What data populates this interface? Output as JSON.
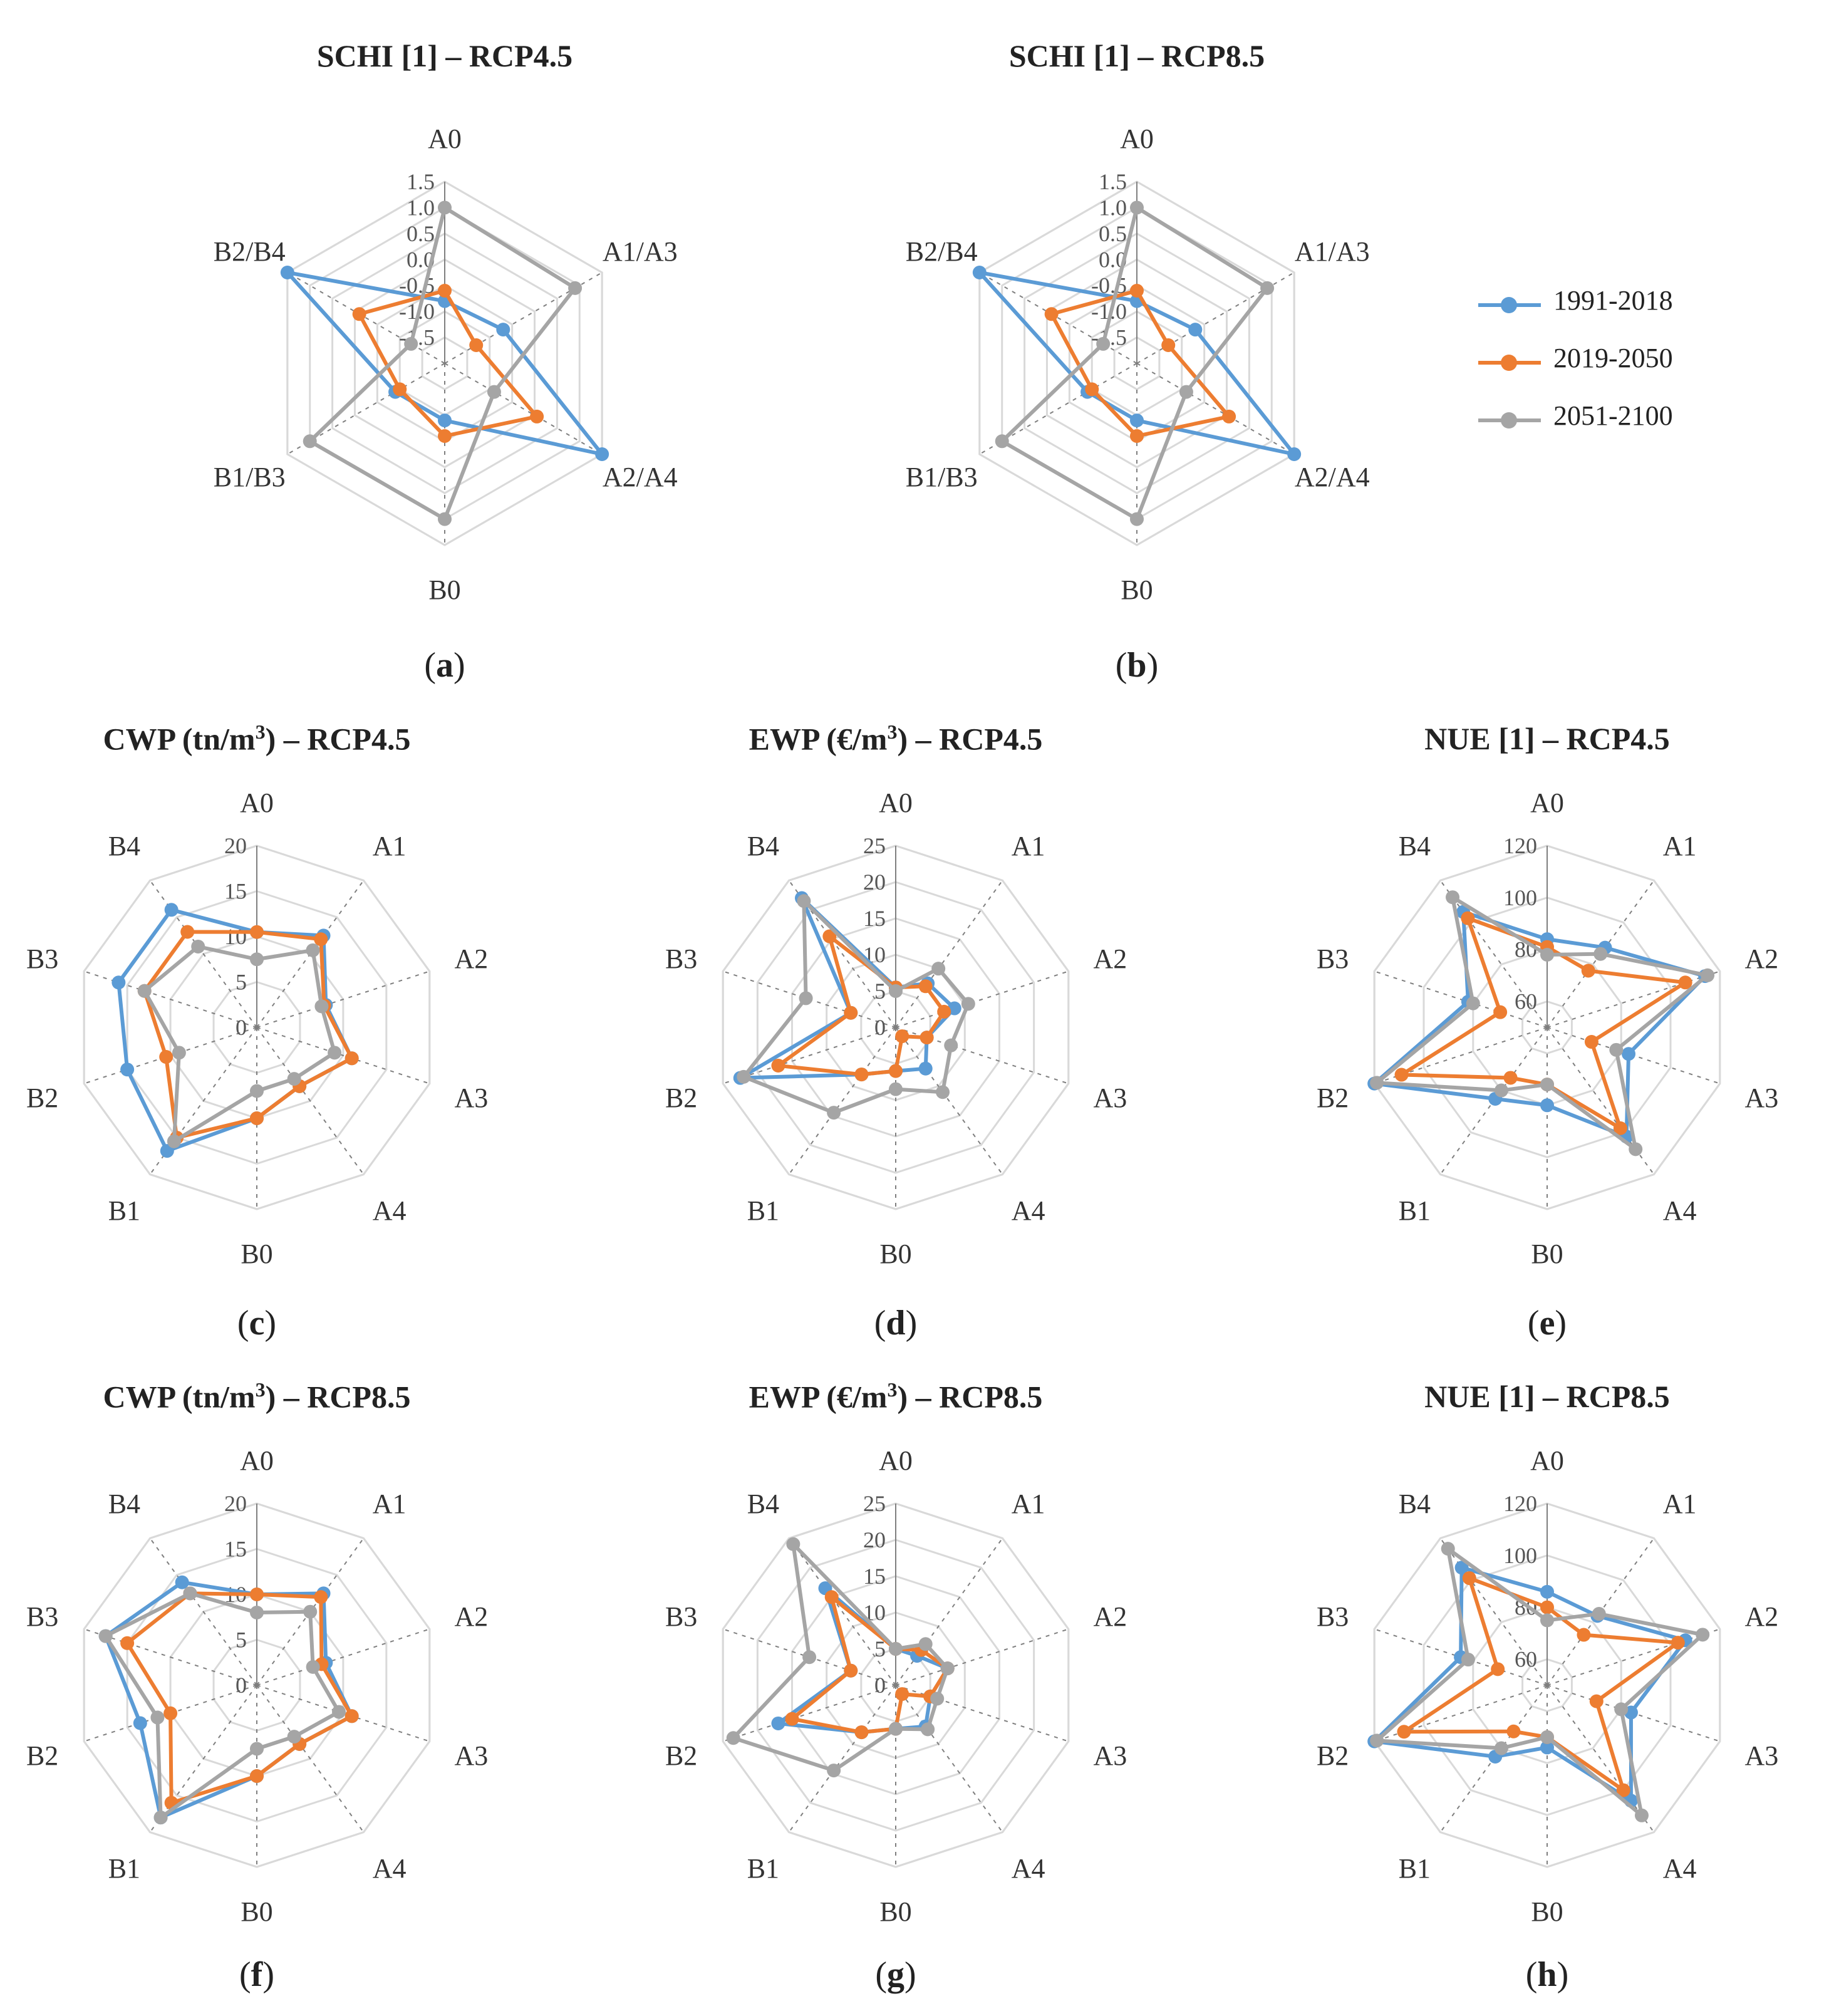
{
  "colors": {
    "s1991": "#5b9bd5",
    "s2019": "#ed7d31",
    "s2051": "#a5a5a5",
    "grid": "#d9d9d9",
    "axis": "#7f7f7f"
  },
  "legend": {
    "items": [
      {
        "label": "1991-2018",
        "color": "#5b9bd5"
      },
      {
        "label": "2019-2050",
        "color": "#ed7d31"
      },
      {
        "label": "2051-2100",
        "color": "#a5a5a5"
      }
    ]
  },
  "chart_data": [
    {
      "type": "radar",
      "id": "a",
      "title": "SCHI [1] – RCP4.5",
      "caption": "a",
      "categories": [
        "A0",
        "A1/A3",
        "A2/A4",
        "B0",
        "B1/B3",
        "B2/B4"
      ],
      "ticks": [
        "-1.5",
        "-1.0",
        "-0.5",
        "0.0",
        "0.5",
        "1.0",
        "1.5"
      ],
      "rmin": -2,
      "rmax": 1.5,
      "series": [
        {
          "name": "1991-2018",
          "values": [
            -0.8,
            -0.7,
            1.5,
            -0.9,
            -0.9,
            1.5
          ]
        },
        {
          "name": "2019-2050",
          "values": [
            -0.6,
            -1.3,
            0.05,
            -0.6,
            -1.0,
            -0.1
          ]
        },
        {
          "name": "2051-2100",
          "values": [
            1.0,
            0.9,
            -0.9,
            1.0,
            1.0,
            -1.25
          ]
        }
      ]
    },
    {
      "type": "radar",
      "id": "b",
      "title": "SCHI [1] – RCP8.5",
      "caption": "b",
      "categories": [
        "A0",
        "A1/A3",
        "A2/A4",
        "B0",
        "B1/B3",
        "B2/B4"
      ],
      "ticks": [
        "-1.5",
        "-1.0",
        "-0.5",
        "0.0",
        "0.5",
        "1.0",
        "1.5"
      ],
      "rmin": -2,
      "rmax": 1.5,
      "series": [
        {
          "name": "1991-2018",
          "values": [
            -0.8,
            -0.7,
            1.5,
            -0.9,
            -0.9,
            1.5
          ]
        },
        {
          "name": "2019-2050",
          "values": [
            -0.6,
            -1.3,
            0.05,
            -0.6,
            -1.0,
            -0.1
          ]
        },
        {
          "name": "2051-2100",
          "values": [
            1.0,
            0.9,
            -0.9,
            1.0,
            1.0,
            -1.25
          ]
        }
      ]
    },
    {
      "type": "radar",
      "id": "c",
      "title": "CWP (tn/m",
      "title_sup": "3",
      "title_tail": ") – RCP4.5",
      "caption": "c",
      "categories": [
        "A0",
        "A1",
        "A2",
        "A3",
        "A4",
        "B0",
        "B1",
        "B2",
        "B3",
        "B4"
      ],
      "ticks": [
        "0",
        "5",
        "10",
        "15",
        "20"
      ],
      "rmin": 0,
      "rmax": 20,
      "series": [
        {
          "name": "1991-2018",
          "values": [
            10.5,
            12.5,
            8.0,
            11.0,
            8.0,
            10.0,
            16.8,
            15.0,
            16.0,
            16.0
          ]
        },
        {
          "name": "2019-2050",
          "values": [
            10.5,
            12.0,
            7.8,
            11.0,
            8.0,
            10.0,
            15.0,
            10.5,
            13.0,
            13.0
          ]
        },
        {
          "name": "2051-2100",
          "values": [
            7.5,
            10.5,
            7.5,
            9.0,
            7.0,
            7.0,
            15.5,
            9.0,
            13.0,
            11.0
          ]
        }
      ]
    },
    {
      "type": "radar",
      "id": "d",
      "title": "EWP (€/m",
      "title_sup": "3",
      "title_tail": ") – RCP4.5",
      "caption": "d",
      "categories": [
        "A0",
        "A1",
        "A2",
        "A3",
        "A4",
        "B0",
        "B1",
        "B2",
        "B3",
        "B4"
      ],
      "ticks": [
        "0",
        "5",
        "10",
        "15",
        "20",
        "25"
      ],
      "rmin": 0,
      "rmax": 25,
      "series": [
        {
          "name": "1991-2018",
          "values": [
            5.5,
            7.5,
            8.5,
            4.5,
            7.0,
            6.0,
            8.0,
            22.5,
            6.5,
            22.0
          ]
        },
        {
          "name": "2019-2050",
          "values": [
            5.5,
            7.0,
            7.0,
            4.5,
            1.5,
            6.0,
            8.0,
            17.0,
            6.5,
            15.5
          ]
        },
        {
          "name": "2051-2100",
          "values": [
            5.0,
            10.0,
            10.5,
            8.0,
            11.0,
            8.5,
            14.5,
            22.0,
            13.0,
            21.5
          ]
        }
      ]
    },
    {
      "type": "radar",
      "id": "e",
      "title": "NUE [1] – RCP4.5",
      "caption": "e",
      "categories": [
        "A0",
        "A1",
        "A2",
        "A3",
        "A4",
        "B0",
        "B1",
        "B2",
        "B3",
        "B4"
      ],
      "ticks": [
        "60",
        "80",
        "100",
        "120"
      ],
      "rmin": 50,
      "rmax": 120,
      "series": [
        {
          "name": "1991-2018",
          "values": [
            84,
            88,
            114,
            83,
            102,
            80,
            84,
            120,
            82,
            105
          ]
        },
        {
          "name": "2019-2050",
          "values": [
            81,
            77,
            106,
            68,
            98,
            72,
            74,
            109,
            69,
            102
          ]
        },
        {
          "name": "2051-2100",
          "values": [
            78,
            85,
            115,
            78,
            108,
            72,
            80,
            119,
            80,
            112
          ]
        }
      ]
    },
    {
      "type": "radar",
      "id": "f",
      "title": "CWP (tn/m",
      "title_sup": "3",
      "title_tail": ") – RCP8.5",
      "caption": "f",
      "categories": [
        "A0",
        "A1",
        "A2",
        "A3",
        "A4",
        "B0",
        "B1",
        "B2",
        "B3",
        "B4"
      ],
      "ticks": [
        "0",
        "5",
        "10",
        "15",
        "20"
      ],
      "rmin": 0,
      "rmax": 20,
      "series": [
        {
          "name": "1991-2018",
          "values": [
            10.0,
            12.5,
            8.0,
            11.0,
            8.0,
            10.0,
            18.0,
            13.5,
            17.5,
            14.0
          ]
        },
        {
          "name": "2019-2050",
          "values": [
            10.0,
            12.0,
            7.5,
            11.0,
            8.0,
            10.0,
            16.0,
            10.0,
            15.0,
            12.5
          ]
        },
        {
          "name": "2051-2100",
          "values": [
            8.0,
            10.0,
            6.5,
            9.5,
            7.0,
            7.0,
            18.0,
            11.5,
            17.5,
            12.5
          ]
        }
      ]
    },
    {
      "type": "radar",
      "id": "g",
      "title": "EWP (€/m",
      "title_sup": "3",
      "title_tail": ") – RCP8.5",
      "caption": "g",
      "categories": [
        "A0",
        "A1",
        "A2",
        "A3",
        "A4",
        "B0",
        "B1",
        "B2",
        "B3",
        "B4"
      ],
      "ticks": [
        "0",
        "5",
        "10",
        "15",
        "20",
        "25"
      ],
      "rmin": 0,
      "rmax": 25,
      "series": [
        {
          "name": "1991-2018",
          "values": [
            5.0,
            5.0,
            7.5,
            5.0,
            7.0,
            6.0,
            8.0,
            17.0,
            6.5,
            16.5
          ]
        },
        {
          "name": "2019-2050",
          "values": [
            5.0,
            6.0,
            7.5,
            5.0,
            1.5,
            6.0,
            8.0,
            15.0,
            6.5,
            15.0
          ]
        },
        {
          "name": "2051-2100",
          "values": [
            5.0,
            7.0,
            7.5,
            6.0,
            7.5,
            6.0,
            14.5,
            23.5,
            12.5,
            24.0
          ]
        }
      ]
    },
    {
      "type": "radar",
      "id": "h",
      "title": "NUE [1] – RCP8.5",
      "caption": "h",
      "categories": [
        "A0",
        "A1",
        "A2",
        "A3",
        "A4",
        "B0",
        "B1",
        "B2",
        "B3",
        "B4"
      ],
      "ticks": [
        "60",
        "80",
        "100",
        "120"
      ],
      "rmin": 50,
      "rmax": 120,
      "series": [
        {
          "name": "1991-2018",
          "values": [
            86,
            83,
            106,
            84,
            105,
            74,
            84,
            120,
            85,
            106
          ]
        },
        {
          "name": "2019-2050",
          "values": [
            80,
            74,
            103,
            70,
            100,
            70,
            72,
            108,
            70,
            101
          ]
        },
        {
          "name": "2051-2100",
          "values": [
            75,
            84,
            113,
            80,
            112,
            70,
            80,
            119,
            82,
            115
          ]
        }
      ]
    }
  ]
}
